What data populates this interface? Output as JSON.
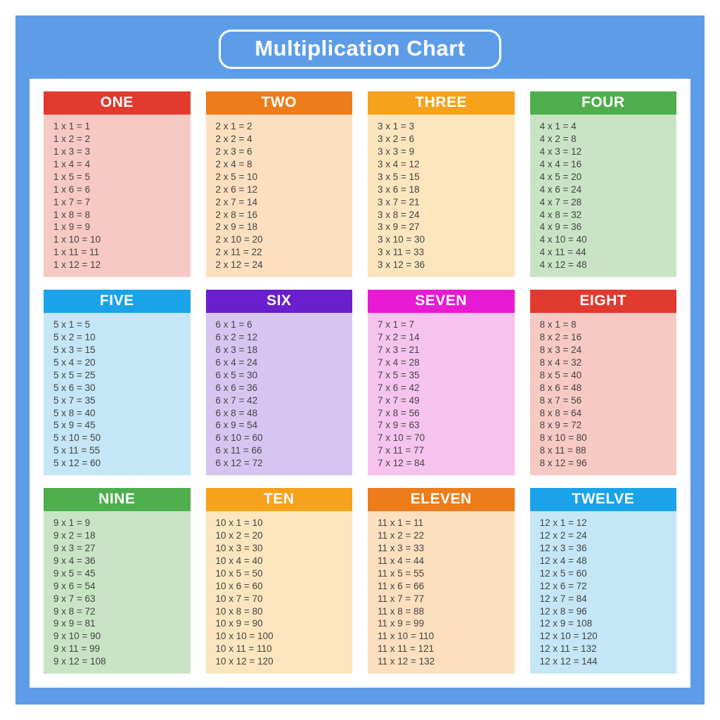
{
  "title": "Multiplication Chart",
  "type": "table",
  "layout": {
    "cols": 4,
    "rows": 3,
    "gap_h": 22,
    "gap_v": 18
  },
  "frame_bg": "#5d9de8",
  "panel_bg": "#ffffff",
  "title_pill": {
    "border_color": "#ffffff",
    "text_color": "#ffffff",
    "fontsize": 31,
    "fontweight": 700,
    "radius": 18
  },
  "card_header": {
    "fontsize": 21,
    "fontweight": 700,
    "text_color": "#ffffff"
  },
  "card_body": {
    "fontsize": 13.5,
    "text_color": "#444444",
    "padding_left": 14
  },
  "multiplier_range": [
    1,
    12
  ],
  "tables": [
    {
      "n": 1,
      "label": "ONE",
      "head_bg": "#e23a2e",
      "body_bg": "#f7c9c3"
    },
    {
      "n": 2,
      "label": "TWO",
      "head_bg": "#ed7d1a",
      "body_bg": "#fbdfbf"
    },
    {
      "n": 3,
      "label": "THREE",
      "head_bg": "#f6a21a",
      "body_bg": "#fde6be"
    },
    {
      "n": 4,
      "label": "FOUR",
      "head_bg": "#4fae4d",
      "body_bg": "#c9e4c5"
    },
    {
      "n": 5,
      "label": "FIVE",
      "head_bg": "#1aa3e8",
      "body_bg": "#c4e6f6"
    },
    {
      "n": 6,
      "label": "SIX",
      "head_bg": "#6a1fce",
      "body_bg": "#d7c5f1"
    },
    {
      "n": 7,
      "label": "SEVEN",
      "head_bg": "#e81ad4",
      "body_bg": "#f6c3ef"
    },
    {
      "n": 8,
      "label": "EIGHT",
      "head_bg": "#e23a2e",
      "body_bg": "#f7c9c3"
    },
    {
      "n": 9,
      "label": "NINE",
      "head_bg": "#4fae4d",
      "body_bg": "#c9e4c5"
    },
    {
      "n": 10,
      "label": "TEN",
      "head_bg": "#f6a21a",
      "body_bg": "#fde6be"
    },
    {
      "n": 11,
      "label": "ELEVEN",
      "head_bg": "#ed7d1a",
      "body_bg": "#fbdfbf"
    },
    {
      "n": 12,
      "label": "TWELVE",
      "head_bg": "#1aa3e8",
      "body_bg": "#c4e6f6"
    }
  ]
}
